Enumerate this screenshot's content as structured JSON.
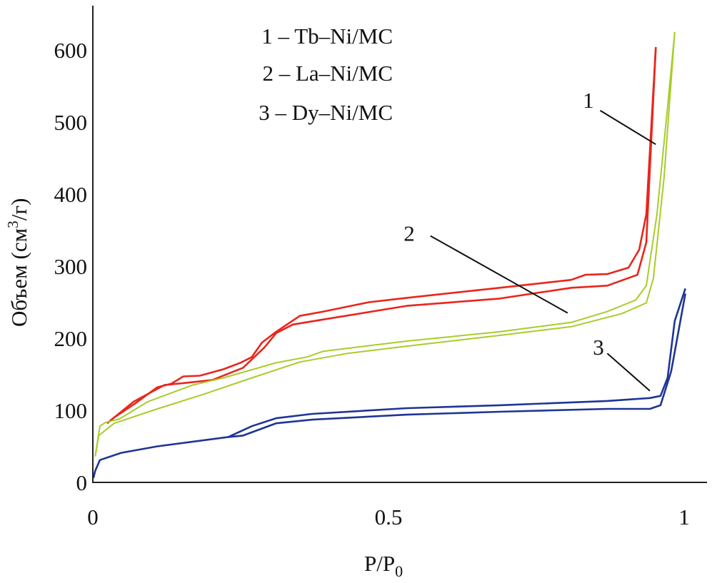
{
  "chart_data": {
    "type": "line",
    "xlabel": "P/P",
    "xlabel_sub": "0",
    "ylabel_pre": "Объем (см",
    "ylabel_sup": "3",
    "ylabel_post": "/г)",
    "xlim": [
      0,
      1.04
    ],
    "ylim": [
      0,
      650
    ],
    "x_ticks": [
      "0",
      "0.5",
      "1"
    ],
    "x_tick_values": [
      0,
      0.5,
      1
    ],
    "y_ticks": [
      "0",
      "100",
      "200",
      "300",
      "400",
      "500",
      "600"
    ],
    "y_tick_values": [
      0,
      100,
      200,
      300,
      400,
      500,
      600
    ],
    "grid": false,
    "legend_position": "top-left",
    "legend": [
      "1 – Tb–Ni/MC",
      "2 – La–Ni/MC",
      "3 – Dy–Ni/MC"
    ],
    "series": [
      {
        "name": "1",
        "color": "#e8261c",
        "branches": [
          {
            "x": [
              0.024,
              0.069,
              0.121,
              0.157,
              0.202,
              0.254,
              0.29,
              0.31,
              0.338,
              0.39,
              0.531,
              0.688,
              0.809,
              0.87,
              0.921,
              0.936,
              0.952
            ],
            "y": [
              82,
              112,
              135,
              138,
              142,
              159,
              187,
              207,
              219,
              226,
              245,
              255,
              270,
              273,
              288,
              333,
              604
            ]
          },
          {
            "x": [
              0.024,
              0.036,
              0.069,
              0.109,
              0.133,
              0.153,
              0.181,
              0.221,
              0.25,
              0.269,
              0.286,
              0.31,
              0.35,
              0.39,
              0.467,
              0.531,
              0.688,
              0.809,
              0.833,
              0.87,
              0.906,
              0.924,
              0.936,
              0.952
            ],
            "y": [
              82,
              90,
              108,
              132,
              137,
              147,
              148,
              157,
              166,
              174,
              194,
              209,
              231,
              237,
              250,
              256,
              270,
              281,
              288,
              289,
              298,
              323,
              372,
              604
            ]
          }
        ]
      },
      {
        "name": "2",
        "color": "#a8cc2a",
        "branches": [
          {
            "x": [
              0.004,
              0.01,
              0.036,
              0.109,
              0.19,
              0.269,
              0.35,
              0.431,
              0.531,
              0.688,
              0.809,
              0.894,
              0.936,
              0.948,
              0.966,
              0.984
            ],
            "y": [
              36,
              65,
              82,
              102,
              123,
              145,
              167,
              179,
              189,
              204,
              216,
              234,
              249,
              283,
              422,
              625
            ]
          },
          {
            "x": [
              0.984,
              0.972,
              0.954,
              0.936,
              0.918,
              0.87,
              0.809,
              0.688,
              0.531,
              0.39,
              0.362,
              0.31,
              0.221,
              0.169,
              0.093,
              0.045,
              0.021,
              0.012,
              0.01,
              0.004
            ],
            "y": [
              625,
              521,
              372,
              273,
              253,
              237,
              222,
              209,
              196,
              182,
              174,
              166,
              145,
              135,
              112,
              88,
              83,
              78,
              68,
              36
            ]
          }
        ]
      },
      {
        "name": "3",
        "color": "#1f3595",
        "branches": [
          {
            "x": [
              0.001,
              0.004,
              0.012,
              0.048,
              0.109,
              0.229,
              0.254,
              0.31,
              0.371,
              0.531,
              0.688,
              0.87,
              0.942,
              0.96,
              0.978,
              1.002
            ],
            "y": [
              6,
              16,
              31,
              41,
              50,
              63,
              65,
              82,
              87,
              94,
              98,
              102,
              102,
              107,
              154,
              262
            ]
          },
          {
            "x": [
              1.002,
              0.984,
              0.972,
              0.96,
              0.942,
              0.87,
              0.688,
              0.531,
              0.371,
              0.31,
              0.269,
              0.229
            ],
            "y": [
              269,
              224,
              145,
              120,
              117,
              113,
              107,
              103,
              95,
              89,
              78,
              63
            ]
          }
        ]
      }
    ],
    "annotations": [
      {
        "text": "1",
        "label_at": [
          0.838,
          520
        ],
        "line": [
          [
            0.858,
            516
          ],
          [
            0.952,
            469
          ]
        ]
      },
      {
        "text": "2",
        "label_at": [
          0.535,
          335
        ],
        "line": [
          [
            0.571,
            342
          ],
          [
            0.803,
            235
          ]
        ]
      },
      {
        "text": "3",
        "label_at": [
          0.855,
          177
        ],
        "line": [
          [
            0.87,
            179
          ],
          [
            0.942,
            127
          ]
        ]
      }
    ]
  }
}
